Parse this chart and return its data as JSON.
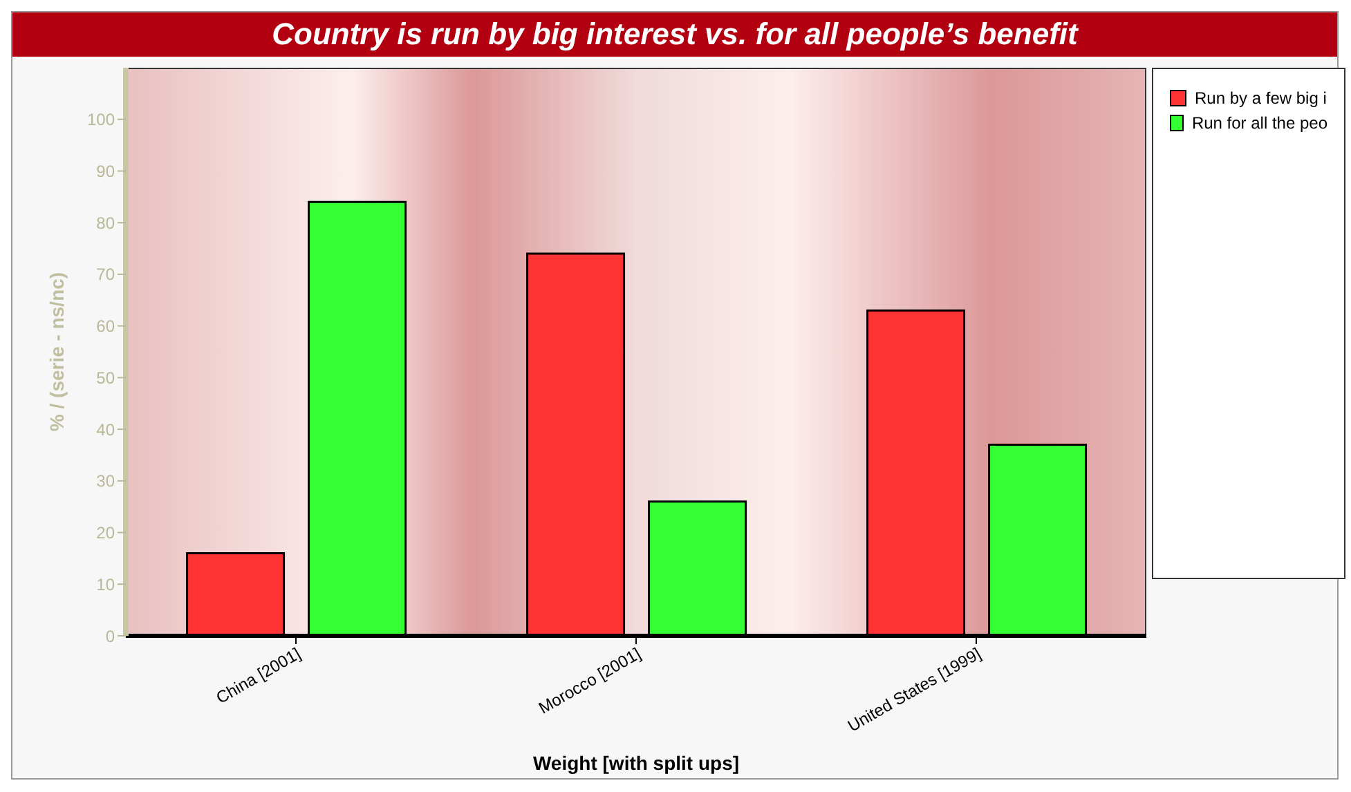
{
  "chart_data": {
    "type": "bar",
    "title": "Country is run by big interest vs. for all people’s benefit",
    "xlabel": "Weight [with split ups]",
    "ylabel": "% / (serie - ns/nc)",
    "categories": [
      "China [2001]",
      "Morocco [2001]",
      "United States [1999]"
    ],
    "series": [
      {
        "name": "Run by a few big i",
        "color": "#ff3333",
        "values": [
          16,
          74,
          63
        ]
      },
      {
        "name": "Run for all the peo",
        "color": "#33ff33",
        "values": [
          84,
          26,
          37
        ]
      }
    ],
    "ylim": [
      0,
      110
    ],
    "yticks": [
      0,
      10,
      20,
      30,
      40,
      50,
      60,
      70,
      80,
      90,
      100
    ],
    "legend": "top right"
  }
}
